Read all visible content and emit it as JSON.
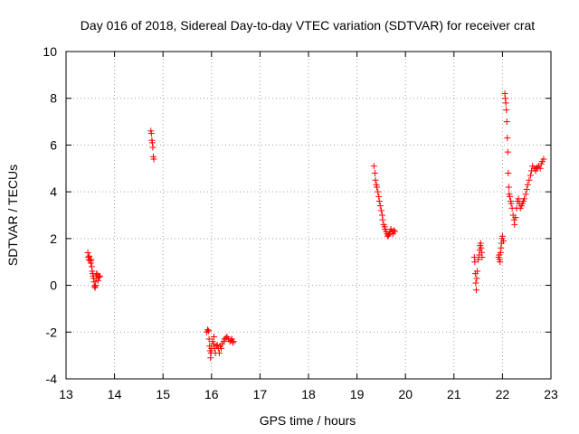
{
  "chart_data": {
    "type": "scatter",
    "title": "Day 016 of 2018, Sidereal Day-to-day VTEC variation (SDTVAR) for receiver crat",
    "xlabel": "GPS time / hours",
    "ylabel": "SDTVAR / TECUs",
    "xlim": [
      13,
      23
    ],
    "ylim": [
      -4,
      10
    ],
    "xticks": [
      13,
      14,
      15,
      16,
      17,
      18,
      19,
      20,
      21,
      22,
      23
    ],
    "yticks": [
      -4,
      -2,
      0,
      2,
      4,
      6,
      8,
      10
    ],
    "grid": true,
    "marker": "+",
    "color": "#ff0000",
    "series": [
      {
        "name": "SDTVAR",
        "points": [
          [
            13.45,
            1.4
          ],
          [
            13.46,
            1.2
          ],
          [
            13.47,
            1.1
          ],
          [
            13.48,
            1.25
          ],
          [
            13.5,
            1.05
          ],
          [
            13.51,
            0.95
          ],
          [
            13.52,
            1.1
          ],
          [
            13.53,
            0.8
          ],
          [
            13.54,
            0.6
          ],
          [
            13.55,
            0.5
          ],
          [
            13.56,
            0.4
          ],
          [
            13.57,
            0.3
          ],
          [
            13.58,
            0.15
          ],
          [
            13.59,
            -0.05
          ],
          [
            13.6,
            -0.1
          ],
          [
            13.61,
            0.0
          ],
          [
            13.62,
            0.3
          ],
          [
            13.63,
            0.5
          ],
          [
            13.65,
            0.45
          ],
          [
            13.66,
            0.2
          ],
          [
            13.68,
            0.35
          ],
          [
            13.7,
            0.4
          ],
          [
            14.75,
            6.6
          ],
          [
            14.76,
            6.5
          ],
          [
            14.77,
            6.2
          ],
          [
            14.78,
            6.1
          ],
          [
            14.79,
            5.9
          ],
          [
            14.8,
            5.5
          ],
          [
            14.81,
            5.4
          ],
          [
            15.9,
            -2.0
          ],
          [
            15.92,
            -1.9
          ],
          [
            15.94,
            -1.95
          ],
          [
            15.95,
            -2.3
          ],
          [
            15.96,
            -2.6
          ],
          [
            15.97,
            -2.8
          ],
          [
            15.98,
            -3.1
          ],
          [
            15.99,
            -2.9
          ],
          [
            16.0,
            -2.7
          ],
          [
            16.02,
            -2.4
          ],
          [
            16.04,
            -2.5
          ],
          [
            16.05,
            -2.2
          ],
          [
            16.06,
            -2.7
          ],
          [
            16.08,
            -2.9
          ],
          [
            16.1,
            -2.6
          ],
          [
            16.12,
            -2.55
          ],
          [
            16.14,
            -2.7
          ],
          [
            16.16,
            -2.9
          ],
          [
            16.18,
            -2.6
          ],
          [
            16.2,
            -2.7
          ],
          [
            16.22,
            -2.5
          ],
          [
            16.25,
            -2.4
          ],
          [
            16.27,
            -2.3
          ],
          [
            16.3,
            -2.25
          ],
          [
            16.32,
            -2.2
          ],
          [
            16.35,
            -2.3
          ],
          [
            16.38,
            -2.4
          ],
          [
            16.4,
            -2.35
          ],
          [
            16.42,
            -2.3
          ],
          [
            16.44,
            -2.45
          ],
          [
            16.45,
            -2.4
          ],
          [
            19.35,
            5.1
          ],
          [
            19.37,
            4.8
          ],
          [
            19.38,
            4.5
          ],
          [
            19.4,
            4.3
          ],
          [
            19.41,
            4.2
          ],
          [
            19.43,
            4.0
          ],
          [
            19.45,
            3.8
          ],
          [
            19.46,
            3.6
          ],
          [
            19.48,
            3.4
          ],
          [
            19.5,
            3.2
          ],
          [
            19.52,
            3.0
          ],
          [
            19.53,
            2.8
          ],
          [
            19.55,
            2.6
          ],
          [
            19.57,
            2.5
          ],
          [
            19.58,
            2.4
          ],
          [
            19.6,
            2.3
          ],
          [
            19.62,
            2.2
          ],
          [
            19.63,
            2.1
          ],
          [
            19.65,
            2.15
          ],
          [
            19.67,
            2.2
          ],
          [
            19.68,
            2.3
          ],
          [
            19.7,
            2.4
          ],
          [
            19.72,
            2.3
          ],
          [
            19.74,
            2.2
          ],
          [
            19.76,
            2.35
          ],
          [
            19.78,
            2.3
          ],
          [
            21.42,
            1.2
          ],
          [
            21.43,
            1.0
          ],
          [
            21.44,
            0.5
          ],
          [
            21.45,
            0.1
          ],
          [
            21.46,
            -0.2
          ],
          [
            21.47,
            0.3
          ],
          [
            21.48,
            0.6
          ],
          [
            21.5,
            1.1
          ],
          [
            21.52,
            1.3
          ],
          [
            21.53,
            1.5
          ],
          [
            21.54,
            1.7
          ],
          [
            21.55,
            1.8
          ],
          [
            21.56,
            1.6
          ],
          [
            21.57,
            1.4
          ],
          [
            21.58,
            1.2
          ],
          [
            21.92,
            1.2
          ],
          [
            21.93,
            1.3
          ],
          [
            21.94,
            1.1
          ],
          [
            21.95,
            1.0
          ],
          [
            21.96,
            1.4
          ],
          [
            21.97,
            1.6
          ],
          [
            21.98,
            1.8
          ],
          [
            21.99,
            2.0
          ],
          [
            22.0,
            2.1
          ],
          [
            22.02,
            1.9
          ],
          [
            22.05,
            8.2
          ],
          [
            22.06,
            8.0
          ],
          [
            22.07,
            7.8
          ],
          [
            22.08,
            7.5
          ],
          [
            22.09,
            7.0
          ],
          [
            22.1,
            6.3
          ],
          [
            22.11,
            5.7
          ],
          [
            22.12,
            4.8
          ],
          [
            22.13,
            4.2
          ],
          [
            22.14,
            3.9
          ],
          [
            22.15,
            3.8
          ],
          [
            22.17,
            3.6
          ],
          [
            22.18,
            3.5
          ],
          [
            22.2,
            3.3
          ],
          [
            22.22,
            3.0
          ],
          [
            22.24,
            2.8
          ],
          [
            22.25,
            2.6
          ],
          [
            22.27,
            2.9
          ],
          [
            22.29,
            3.3
          ],
          [
            22.31,
            3.6
          ],
          [
            22.33,
            3.7
          ],
          [
            22.35,
            3.5
          ],
          [
            22.37,
            3.3
          ],
          [
            22.39,
            3.4
          ],
          [
            22.41,
            3.5
          ],
          [
            22.43,
            3.6
          ],
          [
            22.45,
            3.7
          ],
          [
            22.48,
            3.9
          ],
          [
            22.5,
            4.1
          ],
          [
            22.52,
            4.3
          ],
          [
            22.55,
            4.5
          ],
          [
            22.58,
            4.7
          ],
          [
            22.6,
            4.9
          ],
          [
            22.62,
            5.1
          ],
          [
            22.65,
            5.0
          ],
          [
            22.68,
            4.9
          ],
          [
            22.7,
            5.0
          ],
          [
            22.72,
            5.05
          ],
          [
            22.75,
            5.1
          ],
          [
            22.78,
            5.0
          ],
          [
            22.8,
            5.2
          ],
          [
            22.82,
            5.3
          ],
          [
            22.85,
            5.4
          ]
        ]
      }
    ]
  }
}
